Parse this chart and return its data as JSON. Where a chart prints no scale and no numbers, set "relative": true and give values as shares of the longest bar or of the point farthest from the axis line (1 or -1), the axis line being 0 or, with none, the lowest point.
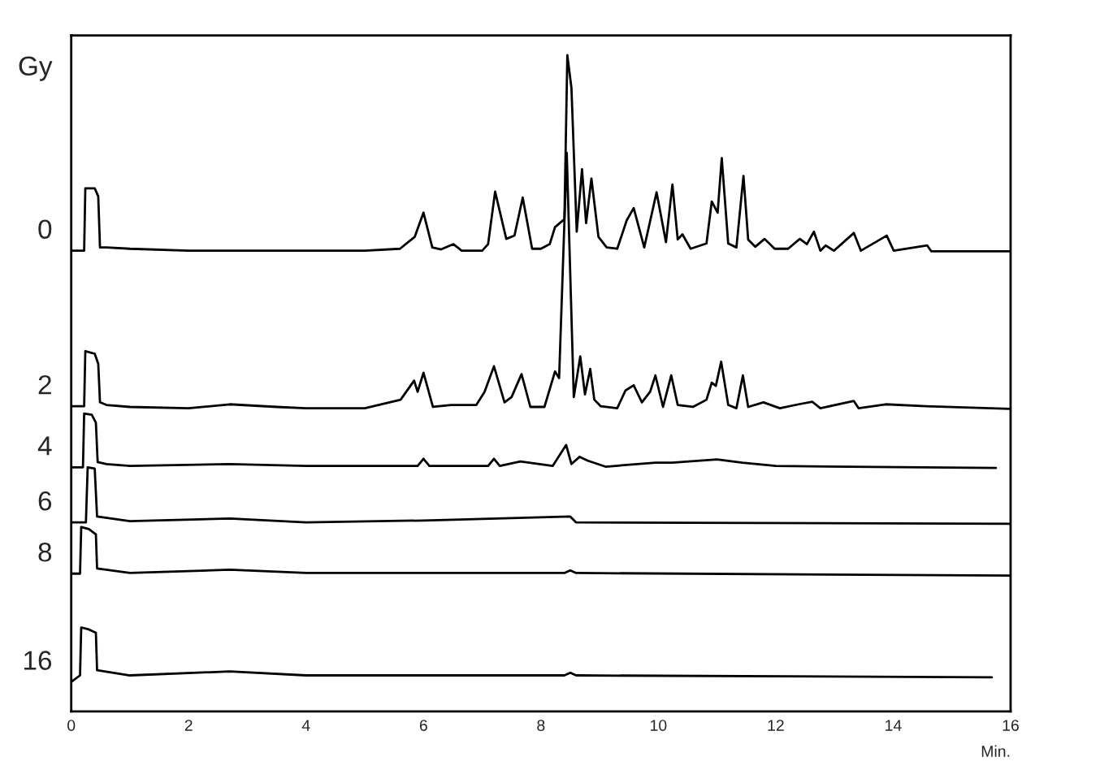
{
  "chart_data": {
    "type": "line",
    "relative": true,
    "xlabel": "Min.",
    "legend_title": "Gy",
    "xlim": [
      0,
      16
    ],
    "xticks": [
      0,
      2,
      4,
      6,
      8,
      10,
      12,
      14,
      16
    ],
    "series": [
      {
        "name": "0",
        "color": "#000000",
        "x": [
          0,
          0.22,
          0.24,
          0.4,
          0.46,
          0.49,
          0.6,
          1.0,
          2.0,
          4.0,
          5.0,
          5.6,
          5.85,
          6.0,
          6.15,
          6.3,
          6.51,
          6.65,
          7.0,
          7.1,
          7.22,
          7.41,
          7.55,
          7.69,
          7.85,
          8.0,
          8.15,
          8.24,
          8.4,
          8.45,
          8.52,
          8.61,
          8.7,
          8.77,
          8.86,
          8.98,
          9.12,
          9.3,
          9.46,
          9.58,
          9.76,
          9.97,
          10.13,
          10.24,
          10.33,
          10.41,
          10.55,
          10.82,
          10.91,
          11.01,
          11.08,
          11.19,
          11.33,
          11.45,
          11.53,
          11.65,
          11.81,
          11.98,
          12.21,
          12.41,
          12.53,
          12.65,
          12.76,
          12.85,
          12.99,
          13.33,
          13.45,
          13.89,
          14.01,
          14.58,
          14.65,
          16.0
        ],
        "values": [
          0.702,
          0.702,
          0.797,
          0.797,
          0.785,
          0.707,
          0.707,
          0.705,
          0.702,
          0.702,
          0.702,
          0.705,
          0.723,
          0.76,
          0.707,
          0.704,
          0.712,
          0.702,
          0.702,
          0.712,
          0.792,
          0.72,
          0.725,
          0.783,
          0.705,
          0.705,
          0.712,
          0.738,
          0.75,
          1.0,
          0.95,
          0.731,
          0.826,
          0.744,
          0.812,
          0.723,
          0.707,
          0.705,
          0.748,
          0.767,
          0.707,
          0.791,
          0.715,
          0.803,
          0.719,
          0.727,
          0.705,
          0.713,
          0.777,
          0.76,
          0.843,
          0.713,
          0.707,
          0.816,
          0.719,
          0.708,
          0.72,
          0.705,
          0.705,
          0.72,
          0.712,
          0.731,
          0.702,
          0.71,
          0.702,
          0.729,
          0.702,
          0.725,
          0.702,
          0.71,
          0.701,
          0.701
        ]
      },
      {
        "name": "2",
        "color": "#000000",
        "x": [
          0,
          0.22,
          0.24,
          0.4,
          0.46,
          0.49,
          0.6,
          1.0,
          2.0,
          2.7,
          3.5,
          4.0,
          5.0,
          5.61,
          5.84,
          5.9,
          6.0,
          6.16,
          6.47,
          6.9,
          7.04,
          7.2,
          7.38,
          7.5,
          7.67,
          7.82,
          8.06,
          8.24,
          8.31,
          8.44,
          8.56,
          8.67,
          8.75,
          8.84,
          8.91,
          9.02,
          9.3,
          9.44,
          9.58,
          9.72,
          9.86,
          9.95,
          10.08,
          10.22,
          10.33,
          10.59,
          10.82,
          10.91,
          10.98,
          11.07,
          11.19,
          11.33,
          11.44,
          11.53,
          11.79,
          12.07,
          12.39,
          12.62,
          12.76,
          13.33,
          13.41,
          13.87,
          14.56,
          15.99
        ],
        "values": [
          0.465,
          0.465,
          0.549,
          0.545,
          0.53,
          0.471,
          0.467,
          0.464,
          0.462,
          0.468,
          0.464,
          0.462,
          0.462,
          0.475,
          0.504,
          0.487,
          0.516,
          0.464,
          0.467,
          0.467,
          0.487,
          0.526,
          0.471,
          0.479,
          0.514,
          0.464,
          0.464,
          0.518,
          0.508,
          0.851,
          0.479,
          0.541,
          0.483,
          0.522,
          0.475,
          0.465,
          0.462,
          0.489,
          0.497,
          0.471,
          0.487,
          0.512,
          0.464,
          0.512,
          0.467,
          0.464,
          0.475,
          0.501,
          0.496,
          0.533,
          0.467,
          0.462,
          0.512,
          0.464,
          0.471,
          0.462,
          0.468,
          0.472,
          0.462,
          0.473,
          0.462,
          0.468,
          0.465,
          0.461
        ]
      },
      {
        "name": "4",
        "color": "#000000",
        "x": [
          0,
          0.2,
          0.22,
          0.35,
          0.42,
          0.45,
          0.6,
          1.0,
          2.7,
          4.0,
          5.9,
          6.0,
          6.1,
          7.1,
          7.2,
          7.3,
          7.65,
          8.2,
          8.43,
          8.52,
          8.66,
          8.8,
          9.1,
          9.95,
          10.23,
          11.0,
          11.43,
          12.0,
          15.75
        ],
        "values": [
          0.372,
          0.372,
          0.454,
          0.452,
          0.44,
          0.38,
          0.377,
          0.374,
          0.377,
          0.374,
          0.374,
          0.385,
          0.374,
          0.374,
          0.385,
          0.374,
          0.381,
          0.374,
          0.406,
          0.377,
          0.388,
          0.382,
          0.373,
          0.379,
          0.379,
          0.384,
          0.379,
          0.374,
          0.371
        ]
      },
      {
        "name": "6",
        "color": "#000000",
        "x": [
          0,
          0.25,
          0.28,
          0.4,
          0.44,
          1.0,
          2.7,
          4.0,
          6.0,
          8.5,
          8.6,
          16.0
        ],
        "values": [
          0.288,
          0.288,
          0.372,
          0.37,
          0.297,
          0.29,
          0.294,
          0.288,
          0.291,
          0.297,
          0.288,
          0.286
        ]
      },
      {
        "name": "8",
        "color": "#000000",
        "x": [
          0,
          0.15,
          0.17,
          0.3,
          0.42,
          0.44,
          1.0,
          2.7,
          4.0,
          8.4,
          8.5,
          8.6,
          16.0
        ],
        "values": [
          0.21,
          0.21,
          0.281,
          0.278,
          0.27,
          0.218,
          0.211,
          0.216,
          0.211,
          0.211,
          0.215,
          0.211,
          0.207
        ]
      },
      {
        "name": "16",
        "color": "#000000",
        "x": [
          0,
          0.15,
          0.17,
          0.3,
          0.42,
          0.44,
          1.0,
          2.7,
          4.0,
          8.4,
          8.5,
          8.6,
          15.68
        ],
        "values": [
          0.045,
          0.055,
          0.128,
          0.125,
          0.12,
          0.063,
          0.055,
          0.061,
          0.055,
          0.055,
          0.059,
          0.055,
          0.052
        ]
      }
    ]
  }
}
